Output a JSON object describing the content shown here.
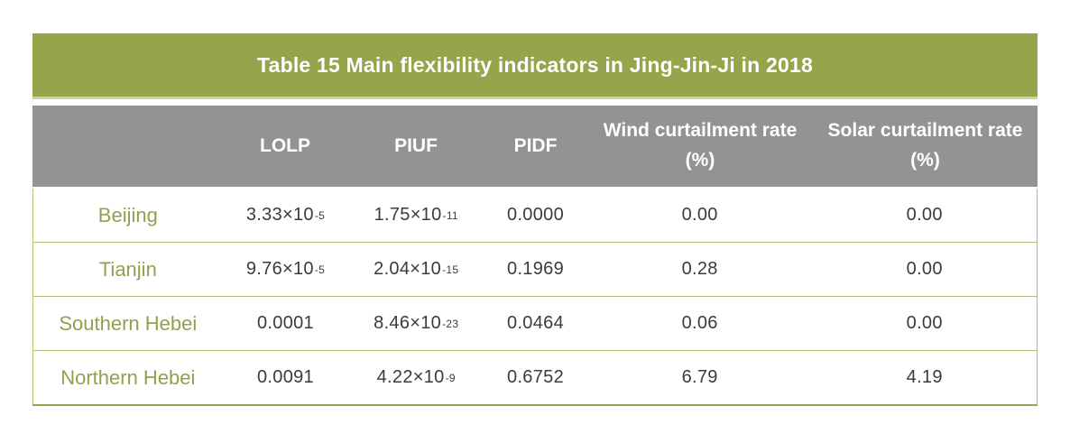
{
  "title": "Table 15 Main flexibility indicators in Jing-Jin-Ji in 2018",
  "colors": {
    "title_bar_green": "#94a54b",
    "header_gray": "#939393",
    "row_border_olive": "#b5ba7a",
    "region_text_green": "#8fa24d",
    "value_text": "#3b3b3b"
  },
  "table": {
    "columns": [
      "",
      "LOLP",
      "PIUF",
      "PIDF",
      "Wind curtailment rate (%)",
      "Solar curtailment rate (%)"
    ],
    "rows": [
      {
        "region": "Beijing",
        "values": [
          "3.33×10^-5",
          "1.75×10^-11",
          "0.0000",
          "0.00",
          "0.00"
        ]
      },
      {
        "region": "Tianjin",
        "values": [
          "9.76×10^-5",
          "2.04×10^-15",
          "0.1969",
          "0.28",
          "0.00"
        ]
      },
      {
        "region": "Southern Hebei",
        "values": [
          "0.0001",
          "8.46×10^-23",
          "0.0464",
          "0.06",
          "0.00"
        ]
      },
      {
        "region": "Northern Hebei",
        "values": [
          "0.0091",
          "4.22×10^-9",
          "0.6752",
          "6.79",
          "4.19"
        ]
      }
    ]
  }
}
